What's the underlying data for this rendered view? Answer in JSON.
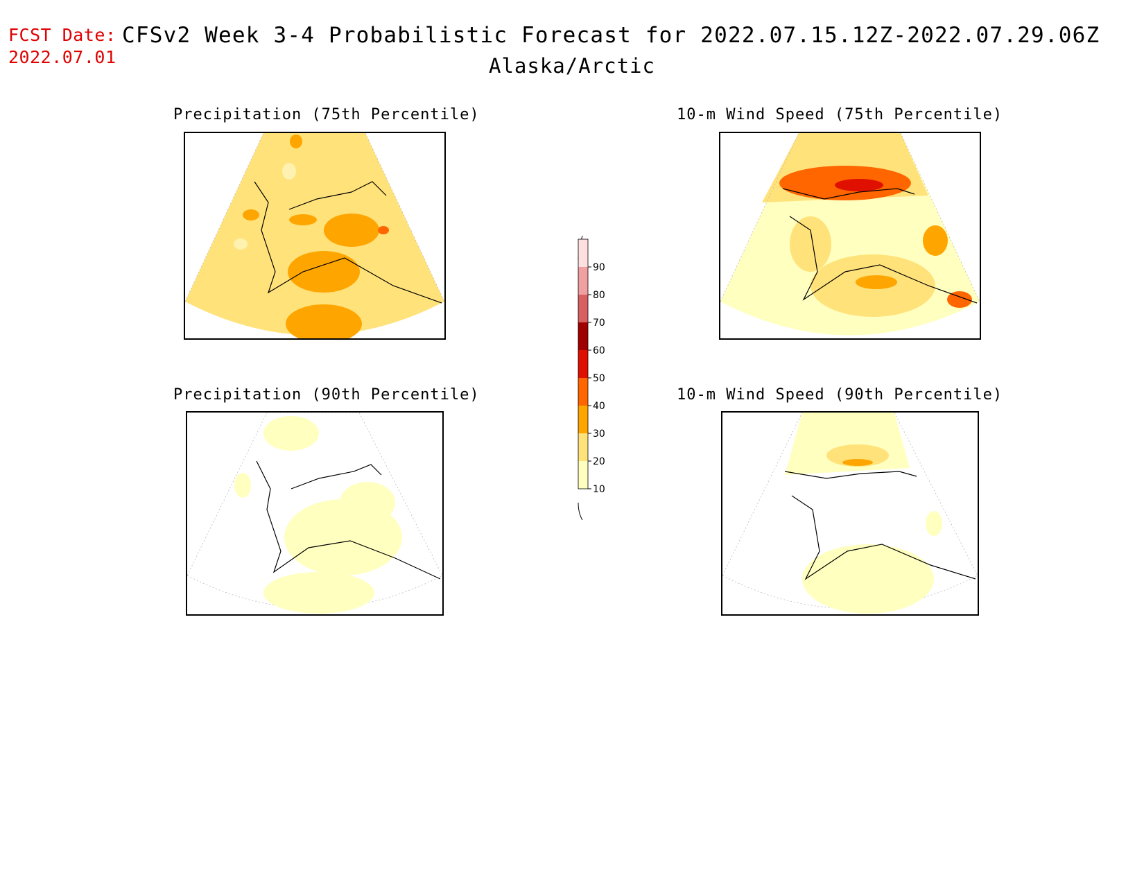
{
  "header": {
    "fcst_label": "FCST Date:",
    "fcst_date": "2022.07.01",
    "title": "CFSv2 Week 3-4 Probabilistic Forecast for 2022.07.15.12Z-2022.07.29.06Z",
    "region": "Alaska/Arctic"
  },
  "panels": [
    {
      "id": "precip75",
      "title": "Precipitation (75th Percentile)",
      "base_level": 20
    },
    {
      "id": "wind75",
      "title": "10-m Wind Speed (75th Percentile)",
      "base_level": 10
    },
    {
      "id": "precip90",
      "title": "Precipitation (90th Percentile)",
      "base_level": 0
    },
    {
      "id": "wind90",
      "title": "10-m Wind Speed (90th Percentile)",
      "base_level": 0
    }
  ],
  "colorbar": {
    "levels": [
      "10",
      "20",
      "30",
      "40",
      "50",
      "60",
      "70",
      "80",
      "90"
    ],
    "colors": {
      "10": "#ffffc0",
      "20": "#ffe27a",
      "30": "#ffa500",
      "40": "#ff6600",
      "50": "#e01000",
      "60": "#a00000",
      "70": "#d86060",
      "80": "#f0a0a0",
      "90": "#ffe0e0"
    }
  }
}
